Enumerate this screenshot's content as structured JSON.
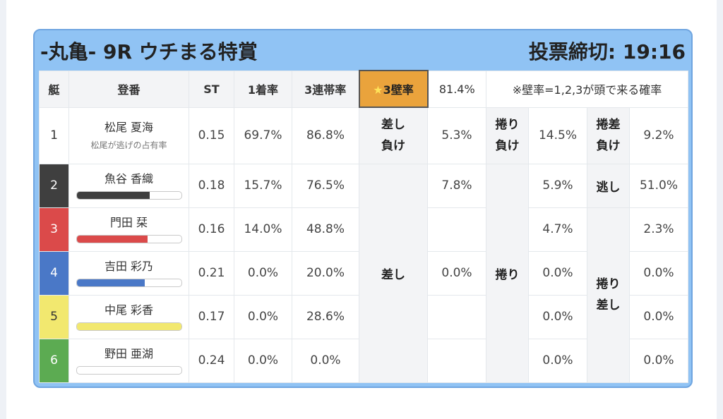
{
  "header": {
    "title": "-丸亀- 9R ウチまる特賞",
    "deadline": "投票締切: 19:16"
  },
  "columns": {
    "boat": "艇",
    "racer": "登番",
    "st": "ST",
    "first": "1着率",
    "top3": "3連帯率",
    "wall_star": "★",
    "wall_label": "3壁率",
    "wall_value": "81.4%",
    "note": "※壁率=1,2,3が頭で来る確率"
  },
  "rows": [
    {
      "boat": "1",
      "name": "松尾 夏海",
      "sub": "松尾が逃げの占有率",
      "st": "0.15",
      "first": "69.7%",
      "top3": "86.8%"
    },
    {
      "boat": "2",
      "name": "魚谷 香織",
      "st": "0.18",
      "first": "15.7%",
      "top3": "76.5%",
      "bar_fill": 0.7,
      "bar_color": "#3f3f3f"
    },
    {
      "boat": "3",
      "name": "門田 栞",
      "st": "0.16",
      "first": "14.0%",
      "top3": "48.8%",
      "bar_fill": 0.68,
      "bar_color": "#db4a4a"
    },
    {
      "boat": "4",
      "name": "吉田 彩乃",
      "st": "0.21",
      "first": "0.0%",
      "top3": "20.0%",
      "bar_fill": 0.65,
      "bar_color": "#4a78c7"
    },
    {
      "boat": "5",
      "name": "中尾 彩香",
      "st": "0.17",
      "first": "0.0%",
      "top3": "28.6%",
      "bar_fill": 1.0,
      "bar_color": "#f2e86f"
    },
    {
      "boat": "6",
      "name": "野田 亜湖",
      "st": "0.24",
      "first": "0.0%",
      "top3": "0.0%",
      "bar_fill": 0.0,
      "bar_color": "#5cab52"
    }
  ],
  "patterns": {
    "sashi_make_l1": "差し",
    "sashi_make_l2": "負け",
    "sashi_make": "5.3%",
    "makuri_make_l1": "捲り",
    "makuri_make_l2": "負け",
    "makuri_make": "14.5%",
    "makurizashi_make_l1": "捲差",
    "makurizashi_make_l2": "負け",
    "makurizashi_make": "9.2%",
    "sashi": "差し",
    "sashi_r2": "7.8%",
    "sashi_r3": "",
    "sashi_r4": "0.0%",
    "sashi_r5": "",
    "sashi_r6": "",
    "makuri": "捲り",
    "makuri_r2": "5.9%",
    "makuri_r3": "4.7%",
    "makuri_r4": "0.0%",
    "makuri_r5": "0.0%",
    "makuri_r6": "0.0%",
    "nige": "逃し",
    "nige_r2": "51.0%",
    "makurizashi_l1": "捲り",
    "makurizashi_l2": "差し",
    "makurizashi_r3": "2.3%",
    "makurizashi_r4": "0.0%",
    "makurizashi_r5": "0.0%",
    "makurizashi_r6": "0.0%"
  },
  "colors": {
    "header_bg": "#90c3f4",
    "wall_highlight": "#eaa33c"
  }
}
